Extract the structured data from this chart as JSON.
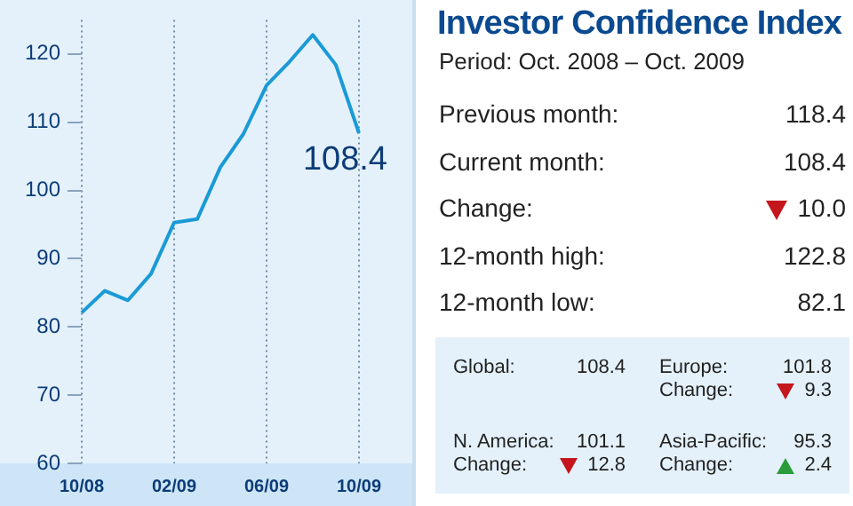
{
  "chart_data": [
    {
      "type": "line",
      "categories": [
        "10/08",
        null,
        null,
        null,
        "02/09",
        null,
        null,
        null,
        "06/09",
        null,
        null,
        null,
        "10/09"
      ],
      "series": [
        {
          "color": "#1a9ad6",
          "values": [
            82.1,
            85.3,
            83.9,
            87.8,
            95.3,
            95.8,
            103.4,
            108.3,
            115.4,
            118.9,
            122.8,
            118.4,
            108.4
          ]
        }
      ],
      "ylim": [
        60,
        125
      ],
      "yticks": [
        60,
        70,
        80,
        90,
        100,
        110,
        120
      ],
      "grid": "x",
      "legend": false,
      "marker": "none",
      "line_style": "solid",
      "annotations": [
        {
          "text": "108.4",
          "x": "10/09",
          "y": 108.4
        }
      ]
    },
    {
      "type": "other",
      "title": "Investor Confidence Index",
      "subtitle": "Period: Oct. 2008 – Oct. 2009",
      "annotations": [
        "Previous month:",
        "118.4",
        "Current month:",
        "108.4",
        "Change:",
        "10.0",
        "12-month high:",
        "122.8",
        "12-month low:",
        "82.1",
        "Global:",
        "108.4",
        "Europe:",
        "101.8",
        "Change:",
        "9.3",
        "N. America:",
        "101.1",
        "Change:",
        "12.8",
        "Asia-Pacific:",
        "95.3",
        "Change:",
        "2.4"
      ]
    }
  ]
}
